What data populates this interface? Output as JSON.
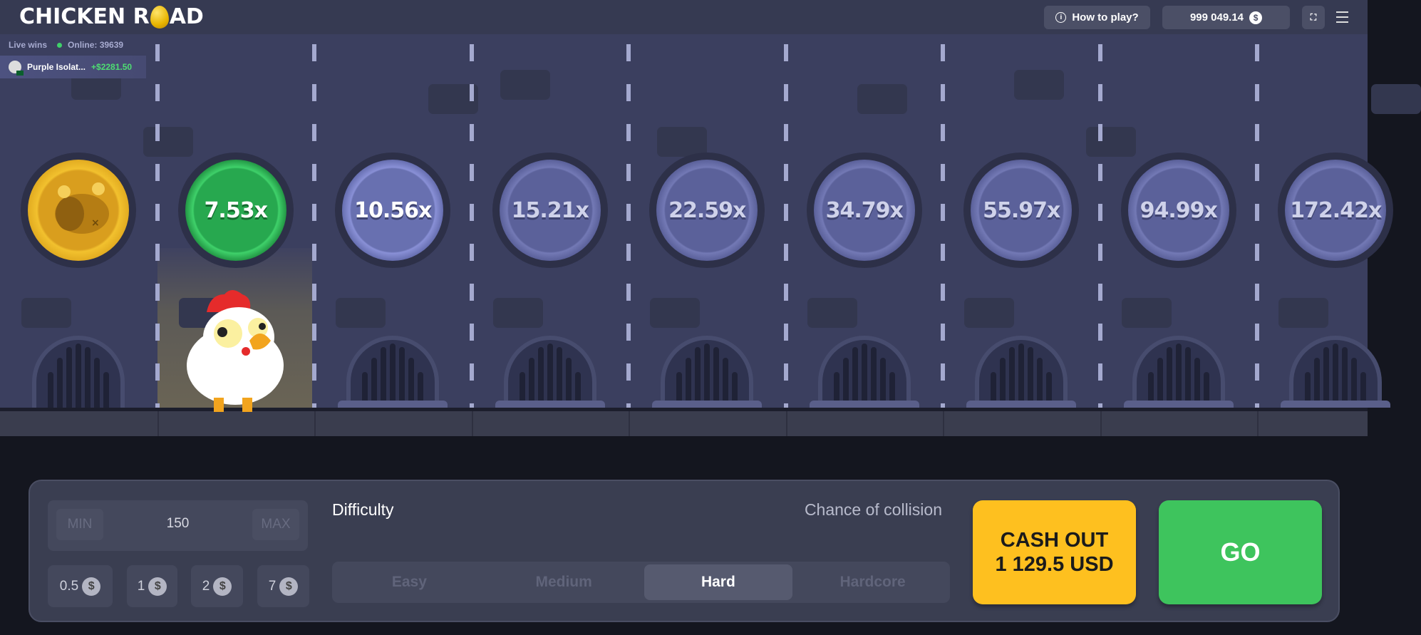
{
  "header": {
    "logo_text": "CHICKEN ROAD",
    "how_to_play": "How to play?",
    "balance": "999 049.14",
    "currency_icon": "dollar-icon"
  },
  "live": {
    "label": "Live wins",
    "online": "Online: 39639",
    "item": {
      "user": "Purple Isolat...",
      "amount": "+$2281.50"
    }
  },
  "lanes": [
    {
      "type": "collected",
      "label": ""
    },
    {
      "type": "current",
      "label": "7.53x"
    },
    {
      "type": "next",
      "label": "10.56x"
    },
    {
      "type": "future",
      "label": "15.21x"
    },
    {
      "type": "future",
      "label": "22.59x"
    },
    {
      "type": "future",
      "label": "34.79x"
    },
    {
      "type": "future",
      "label": "55.97x"
    },
    {
      "type": "future",
      "label": "94.99x"
    },
    {
      "type": "future",
      "label": "172.42x"
    }
  ],
  "controls": {
    "min": "MIN",
    "max": "MAX",
    "bet": "150",
    "chips": [
      "0.5",
      "1",
      "2",
      "7"
    ],
    "difficulty_label": "Difficulty",
    "chance_label": "Chance of collision",
    "difficulties": [
      "Easy",
      "Medium",
      "Hard",
      "Hardcore"
    ],
    "selected_difficulty": "Hard",
    "cashout_line1": "CASH OUT",
    "cashout_line2": "1 129.5 USD",
    "go": "GO"
  },
  "colors": {
    "accent_green": "#3ec45d",
    "cashout_yellow": "#fec01f",
    "win_green": "#4ede72"
  }
}
